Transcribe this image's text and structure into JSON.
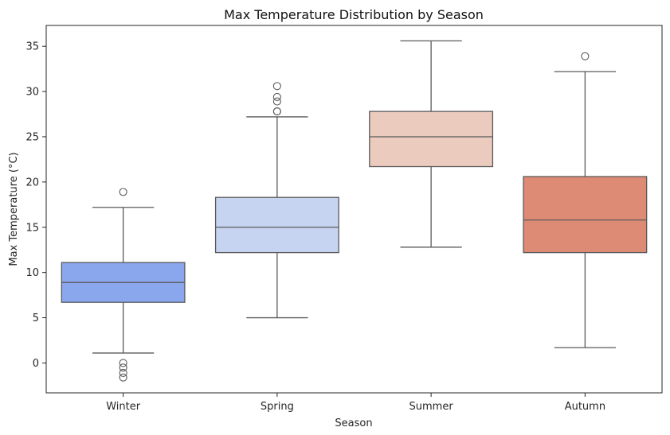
{
  "chart_data": {
    "type": "box",
    "title": "Max Temperature Distribution by Season",
    "xlabel": "Season",
    "ylabel": "Max Temperature (°C)",
    "ylim": [
      -3.3,
      37.3
    ],
    "yticks": [
      0,
      5,
      10,
      15,
      20,
      25,
      30,
      35
    ],
    "grid": false,
    "categories": [
      "Winter",
      "Spring",
      "Summer",
      "Autumn"
    ],
    "boxes": [
      {
        "category": "Winter",
        "whisker_low": 1.1,
        "q1": 6.7,
        "median": 8.9,
        "q3": 11.1,
        "whisker_high": 17.2,
        "outliers": [
          18.9,
          0.0,
          -0.5,
          -1.1,
          -1.6
        ],
        "color": "#8aa6ec"
      },
      {
        "category": "Spring",
        "whisker_low": 5.0,
        "q1": 12.2,
        "median": 15.0,
        "q3": 18.3,
        "whisker_high": 27.2,
        "outliers": [
          30.6,
          29.4,
          28.9,
          27.8,
          27.8
        ],
        "color": "#c6d4f1"
      },
      {
        "category": "Summer",
        "whisker_low": 12.8,
        "q1": 21.7,
        "median": 25.0,
        "q3": 27.8,
        "whisker_high": 35.6,
        "outliers": [],
        "color": "#eacbbd"
      },
      {
        "category": "Autumn",
        "whisker_low": 1.7,
        "q1": 12.2,
        "median": 15.8,
        "q3": 20.6,
        "whisker_high": 32.2,
        "outliers": [
          33.9
        ],
        "color": "#dd8b75"
      }
    ]
  }
}
